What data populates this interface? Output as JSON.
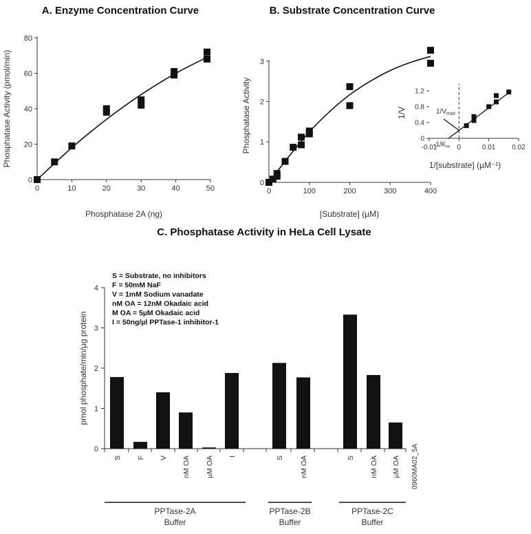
{
  "chart_data": [
    {
      "type": "scatter",
      "title": "A. Enzyme Concentration Curve",
      "xlabel": "Phosphatase 2A (ng)",
      "ylabel": "Phosphatase Activity (pmol/min)",
      "xlim": [
        0,
        50
      ],
      "ylim": [
        0,
        80
      ],
      "xticks": [
        0,
        10,
        20,
        30,
        40,
        50
      ],
      "yticks": [
        0,
        20,
        40,
        60,
        80
      ],
      "points": [
        {
          "x": 0,
          "y": 0
        },
        {
          "x": 5,
          "y": 10
        },
        {
          "x": 10,
          "y": 19
        },
        {
          "x": 20,
          "y": 38
        },
        {
          "x": 20,
          "y": 40
        },
        {
          "x": 30,
          "y": 42
        },
        {
          "x": 30,
          "y": 45
        },
        {
          "x": 39.5,
          "y": 59
        },
        {
          "x": 39.5,
          "y": 61
        },
        {
          "x": 49,
          "y": 68
        },
        {
          "x": 49,
          "y": 72
        }
      ],
      "fit": [
        {
          "x": 0,
          "y": 0
        },
        {
          "x": 10,
          "y": 18
        },
        {
          "x": 20,
          "y": 34
        },
        {
          "x": 30,
          "y": 48
        },
        {
          "x": 40,
          "y": 60
        },
        {
          "x": 49,
          "y": 69
        }
      ]
    },
    {
      "type": "scatter",
      "title": "B. Substrate Concentration Curve",
      "xlabel": "[Substrate] (µM)",
      "ylabel": "Phosphatase Activity",
      "xlim": [
        0,
        400
      ],
      "ylim": [
        0,
        3.4
      ],
      "xticks": [
        0,
        100,
        200,
        300,
        400
      ],
      "yticks": [
        0,
        1,
        2,
        3
      ],
      "points": [
        {
          "x": 0,
          "y": 0
        },
        {
          "x": 10,
          "y": 0.08
        },
        {
          "x": 20,
          "y": 0.15
        },
        {
          "x": 20,
          "y": 0.22
        },
        {
          "x": 40,
          "y": 0.52
        },
        {
          "x": 60,
          "y": 0.87
        },
        {
          "x": 80,
          "y": 0.93
        },
        {
          "x": 80,
          "y": 1.12
        },
        {
          "x": 100,
          "y": 1.2
        },
        {
          "x": 100,
          "y": 1.27
        },
        {
          "x": 200,
          "y": 1.9
        },
        {
          "x": 200,
          "y": 2.37
        },
        {
          "x": 400,
          "y": 2.95
        },
        {
          "x": 400,
          "y": 3.27
        }
      ],
      "fit": [
        {
          "x": 0,
          "y": 0
        },
        {
          "x": 50,
          "y": 0.65
        },
        {
          "x": 100,
          "y": 1.25
        },
        {
          "x": 150,
          "y": 1.75
        },
        {
          "x": 200,
          "y": 2.17
        },
        {
          "x": 250,
          "y": 2.5
        },
        {
          "x": 300,
          "y": 2.77
        },
        {
          "x": 350,
          "y": 2.97
        },
        {
          "x": 400,
          "y": 3.12
        }
      ],
      "inset": {
        "type": "line",
        "xlabel": "1/[substrate] (µM⁻¹)",
        "ylabel": "1/V",
        "xlim": [
          -0.01,
          0.02
        ],
        "ylim": [
          0,
          1.2
        ],
        "xticks": [
          -0.01,
          0,
          0.01,
          0.02
        ],
        "xtick_labels": [
          "-0.01",
          "0",
          "0.01",
          "0.02"
        ],
        "yticks": [
          0,
          0.4,
          0.8,
          1.2
        ],
        "ytick_labels": [
          "0",
          "0.4",
          "0.8",
          "1.2"
        ],
        "points": [
          {
            "x": 0.0025,
            "y": 0.32
          },
          {
            "x": 0.005,
            "y": 0.45
          },
          {
            "x": 0.005,
            "y": 0.55
          },
          {
            "x": 0.01,
            "y": 0.8
          },
          {
            "x": 0.0125,
            "y": 0.92
          },
          {
            "x": 0.0125,
            "y": 1.08
          },
          {
            "x": 0.0167,
            "y": 1.17
          }
        ],
        "fit": [
          {
            "x": -0.0035,
            "y": 0
          },
          {
            "x": 0.0175,
            "y": 1.2
          }
        ],
        "annotations": {
          "vmax_label": "1/V",
          "vmax_sub": "max",
          "km_label": "-1/K",
          "km_sub": "m"
        }
      }
    },
    {
      "type": "bar",
      "title": "C. Phosphatase Activity in HeLa Cell Lysate",
      "ylabel": "pmol phosphate/min/µg protein",
      "ylim": [
        0,
        4
      ],
      "yticks": [
        0,
        1,
        2,
        3,
        4
      ],
      "categories": [
        "S",
        "F",
        "V",
        "nM OA",
        "µM OA",
        "I",
        "S",
        "nM OA",
        "S",
        "nM OA",
        "µM OA"
      ],
      "values": [
        1.78,
        0.17,
        1.4,
        0.9,
        0.03,
        1.88,
        2.13,
        1.77,
        3.33,
        1.83,
        0.65
      ],
      "groups": [
        {
          "name": "PPTase-2A",
          "sub": "Buffer"
        },
        {
          "name": "PPTase-2B",
          "sub": "Buffer"
        },
        {
          "name": "PPTase-2C",
          "sub": "Buffer"
        }
      ],
      "legend": [
        "S = Substrate, no inhibitors",
        "F = 50mM NaF",
        "V = 1mM Sodium vanadate",
        "nM OA = 12nM Okadaic acid",
        "M OA = 5µM Okadaic acid",
        "I = 50ng/µl PPTase-1 inhibitor-1"
      ],
      "watermark": "0960MA02_5A"
    }
  ],
  "colors": {
    "mark": "#111111",
    "axis": "#333333"
  }
}
